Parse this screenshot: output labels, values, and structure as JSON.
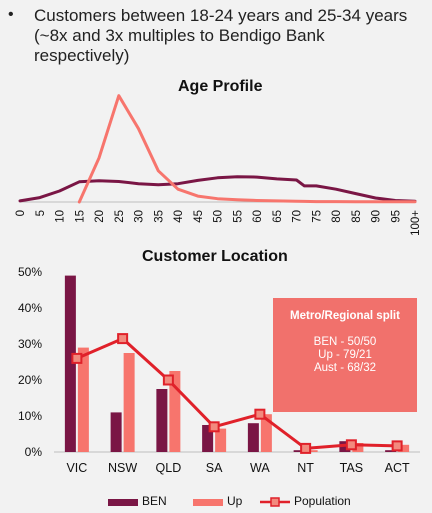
{
  "bullet": {
    "text": "Customers between 18-24 years and 25-34 years\n(~8x and 3x multiples to Bendigo Bank\nrespectively)"
  },
  "colors": {
    "ben": "#7a1645",
    "up": "#f7756d",
    "population": "#e0212a",
    "marker_fill": "#f28a7e"
  },
  "callout": {
    "title": "Metro/Regional split",
    "lines": [
      "BEN - 50/50",
      "Up - 79/21",
      "Aust - 68/32"
    ]
  },
  "chart_data": [
    {
      "type": "line",
      "title": "Age Profile",
      "x": [
        0,
        5,
        10,
        15,
        20,
        25,
        30,
        35,
        40,
        45,
        50,
        55,
        60,
        65,
        70,
        72,
        75,
        80,
        85,
        90,
        95,
        100
      ],
      "x_tick_labels": [
        "0",
        "5",
        "10",
        "15",
        "20",
        "25",
        "30",
        "35",
        "40",
        "45",
        "50",
        "55",
        "60",
        "65",
        "70",
        "75",
        "80",
        "85",
        "90",
        "95",
        "100+"
      ],
      "series": [
        {
          "key": "ben",
          "values": [
            0.3,
            1.2,
            3.0,
            5.5,
            5.8,
            5.6,
            5.0,
            4.7,
            5.0,
            5.9,
            6.6,
            6.9,
            6.8,
            6.3,
            6.0,
            4.4,
            4.4,
            3.5,
            2.3,
            1.1,
            0.4,
            0.2
          ]
        },
        {
          "key": "up",
          "values": [
            null,
            null,
            null,
            0,
            12,
            29,
            20,
            8.5,
            3.5,
            1.6,
            0.9,
            0.6,
            0.4,
            0.3,
            0.2,
            0.15,
            0.1,
            0.1,
            0.05,
            0.05,
            0.05,
            0.05
          ]
        }
      ],
      "xlim": [
        0,
        100
      ],
      "ylim": [
        0,
        30
      ],
      "grid": false
    },
    {
      "type": "bar",
      "title": "Customer Location",
      "categories": [
        "VIC",
        "NSW",
        "QLD",
        "SA",
        "WA",
        "NT",
        "TAS",
        "ACT"
      ],
      "series": [
        {
          "name": "BEN",
          "key": "ben",
          "values": [
            49,
            11,
            17.5,
            7.5,
            8,
            0.5,
            3,
            0.5
          ]
        },
        {
          "name": "Up",
          "key": "up",
          "values": [
            29,
            27.5,
            22.5,
            6.5,
            10.5,
            0.5,
            2.5,
            2
          ]
        },
        {
          "name": "Population",
          "key": "population",
          "values": [
            26,
            31.5,
            20,
            7,
            10.5,
            1,
            2,
            1.7
          ]
        }
      ],
      "y_tick_labels": [
        "0%",
        "10%",
        "20%",
        "30%",
        "40%",
        "50%"
      ],
      "ylim": [
        0,
        50
      ],
      "legend": "bottom",
      "grid": false
    }
  ]
}
